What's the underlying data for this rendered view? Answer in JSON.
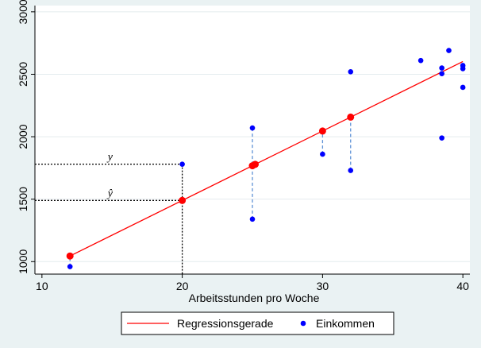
{
  "chart_data": {
    "type": "scatter",
    "title": "",
    "xlabel": "Arbeitsstunden pro Woche",
    "ylabel": "",
    "xlim": [
      9.5,
      40.5
    ],
    "ylim": [
      900,
      3050
    ],
    "x_ticks": [
      10,
      20,
      30,
      40
    ],
    "y_ticks": [
      1000,
      1500,
      2000,
      2500,
      3000
    ],
    "grid": true,
    "legend_position": "bottom",
    "regression": {
      "intercept": 377.7,
      "slope": 55.6
    },
    "series": [
      {
        "name": "Einkommen",
        "kind": "scatter",
        "color": "#0000ff",
        "points": [
          [
            12,
            960
          ],
          [
            20,
            1780
          ],
          [
            25,
            2070
          ],
          [
            25,
            1340
          ],
          [
            30,
            1860
          ],
          [
            32,
            2520
          ],
          [
            32,
            1730
          ],
          [
            37,
            2610
          ],
          [
            38.5,
            2550
          ],
          [
            38.5,
            2505
          ],
          [
            38.5,
            1990
          ],
          [
            39,
            2690
          ],
          [
            40,
            2570
          ],
          [
            40,
            2545
          ],
          [
            40,
            2395
          ]
        ]
      },
      {
        "name": "Regressionsgerade",
        "kind": "line",
        "color": "#ff0000",
        "x": [
          12,
          40
        ]
      }
    ],
    "fitted_points": {
      "color": "#ff0000",
      "x": [
        12,
        20,
        25,
        25.2,
        30,
        32
      ]
    },
    "residuals": [
      {
        "x": 12,
        "y": 960
      },
      {
        "x": 25,
        "y": 2070
      },
      {
        "x": 25,
        "y": 1340
      },
      {
        "x": 30,
        "y": 1860
      },
      {
        "x": 32,
        "y": 1730
      }
    ],
    "annotation": {
      "x": 20,
      "y_observed": 1780,
      "label_y": "y",
      "label_yhat": "ŷ"
    }
  }
}
